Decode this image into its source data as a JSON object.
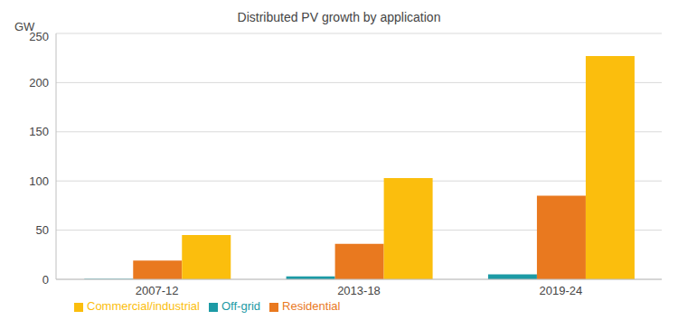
{
  "chart_data": {
    "type": "bar",
    "title": "Distributed PV growth by application",
    "y_label": "GW",
    "categories": [
      "2007-12",
      "2013-18",
      "2019-24"
    ],
    "series": [
      {
        "name": "Off-grid",
        "color": "#1c9aa5",
        "values": [
          0.5,
          3,
          5
        ]
      },
      {
        "name": "Residential",
        "color": "#e9791f",
        "values": [
          19,
          36,
          85
        ]
      },
      {
        "name": "Commercial/industrial",
        "color": "#fbbe0d",
        "values": [
          45,
          103,
          227
        ]
      }
    ],
    "ylim": [
      0,
      250
    ],
    "yticks": [
      0,
      50,
      100,
      150,
      200,
      250
    ],
    "grid": true,
    "legend": "bottom"
  }
}
